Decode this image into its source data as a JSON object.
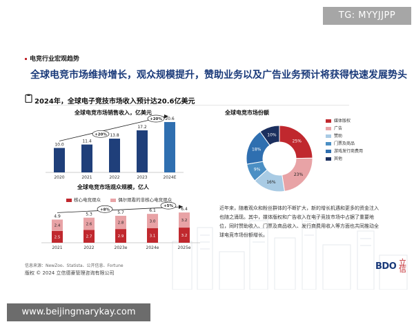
{
  "watermarks": {
    "top": "TG: MYYJJPP",
    "bottom": "www.beijingmarykay.com"
  },
  "slide": {
    "section": "电竞行业宏观趋势",
    "headline": "全球电竞市场维持增长，观众规模提升，赞助业务以及广告业务预计将获得快速发展势头",
    "subhead": "2024年，全球电子竞技市场收入预计达20.6亿美元",
    "paragraph": "近年来，随着观众和粉丝群体的不断扩大，新的增长机遇和更多的资金注入也随之涌现。其中，媒体版权和广告收入在电子竞技市场中占据了重要地位，同时赞助收入、门票及商品收入、发行商费用收入等方面也共同推动全球电竞市场份额增长。",
    "source": "信息来源：NewZoo、Statista、公开信息、Fortune",
    "copyright": "版权 © 2024 立信德豪管理咨询有限公司",
    "logo": "BDO",
    "logo_mark": "立信"
  },
  "colors": {
    "navy": "#1f3f7a",
    "red": "#c0282e",
    "pink": "#e8a3a6",
    "light_blue": "#a9cbe4",
    "mid_blue": "#4b8fc4",
    "blue2": "#2f6fb0",
    "dark_navy": "#1b2f5e"
  },
  "chart_data": [
    {
      "type": "bar",
      "title": "全球电竞市场销售收入，亿美元",
      "categories": [
        "2020",
        "2021",
        "2022",
        "2023",
        "2024E"
      ],
      "values": [
        10.0,
        11.4,
        13.8,
        17.2,
        20.6
      ],
      "value_labels": [
        "10.0",
        "11.4",
        "13.8",
        "17.2",
        "20.6"
      ],
      "growth_annotations": [
        "+20%",
        "+20%"
      ],
      "ylim": [
        0,
        22
      ]
    },
    {
      "type": "bar",
      "title": "全球电竞市场观众规模，亿人",
      "stacked": true,
      "categories": [
        "2021",
        "2022",
        "2023e",
        "2024e",
        "2025e"
      ],
      "series": [
        {
          "name": "核心电竞观众",
          "values": [
            2.5,
            2.7,
            2.9,
            3.1,
            3.2
          ],
          "labels": [
            "2.5",
            "2.7",
            "2.9",
            "3.1",
            "3.2"
          ]
        },
        {
          "name": "偶尔观看的非核心电竞观众",
          "values": [
            2.4,
            2.6,
            2.8,
            3.0,
            3.2
          ],
          "labels": [
            "2.4",
            "2.6",
            "2.8",
            "3.0",
            "3.2"
          ]
        }
      ],
      "totals": [
        4.9,
        5.3,
        5.7,
        6.1,
        6.4
      ],
      "total_labels": [
        "4.9",
        "5.3",
        "5.7",
        "6.1",
        "6.4"
      ],
      "growth_annotations": [
        "+8%",
        "+5%"
      ],
      "ylim": [
        0,
        7
      ]
    },
    {
      "type": "pie",
      "donut": true,
      "title": "全球电竞市场份额",
      "slices": [
        {
          "name": "媒体版权",
          "value": 25,
          "label": "25%"
        },
        {
          "name": "广告",
          "value": 23,
          "label": "23%"
        },
        {
          "name": "赞助",
          "value": 16,
          "label": "16%"
        },
        {
          "name": "门票及商品",
          "value": 9,
          "label": "9%"
        },
        {
          "name": "游戏发行商费用",
          "value": 18,
          "label": "18%"
        },
        {
          "name": "其他",
          "value": 10,
          "label": "10%"
        }
      ]
    }
  ]
}
